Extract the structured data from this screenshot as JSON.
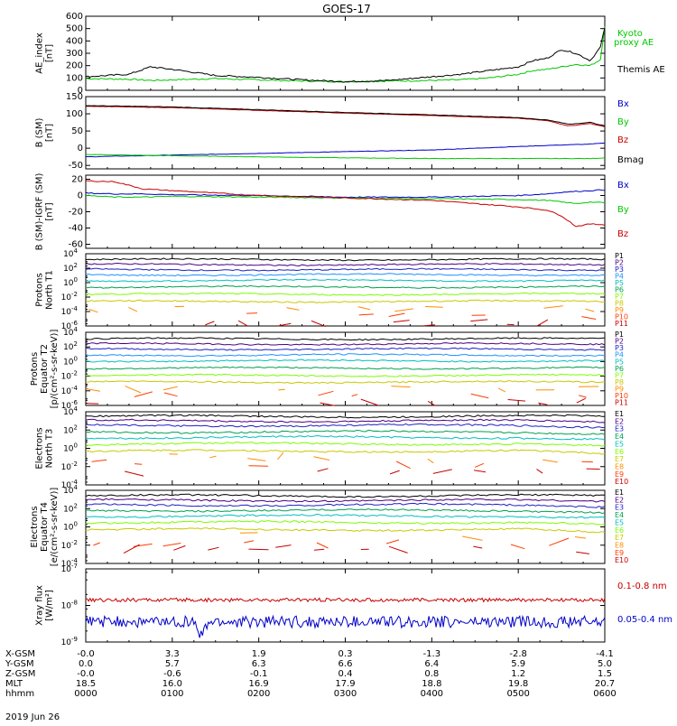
{
  "title": "GOES-17",
  "date_label": "2019 Jun 26",
  "colors": {
    "black": "#000000",
    "green": "#00c800",
    "blue": "#0000c8",
    "red": "#c80000",
    "proton_levels": [
      "#000000",
      "#4b0082",
      "#2020c8",
      "#1e90ff",
      "#00bfbf",
      "#00a050",
      "#7cfc00",
      "#c8c800",
      "#ff8c00",
      "#ff3c00",
      "#c80000"
    ],
    "electron_levels": [
      "#000000",
      "#4b0082",
      "#2020c8",
      "#00a050",
      "#00bfbf",
      "#7cfc00",
      "#c8c800",
      "#ff8c00",
      "#ff3c00",
      "#c80000"
    ]
  },
  "ephemeris": {
    "rows": [
      {
        "label": "X-GSM",
        "values": [
          "-0.0",
          "3.3",
          "1.9",
          "0.3",
          "-1.3",
          "-2.8",
          "-4.1"
        ]
      },
      {
        "label": "Y-GSM",
        "values": [
          "0.0",
          "5.7",
          "6.3",
          "6.6",
          "6.4",
          "5.9",
          "5.0"
        ]
      },
      {
        "label": "Z-GSM",
        "values": [
          "-0.0",
          "-0.6",
          "-0.1",
          "0.4",
          "0.8",
          "1.2",
          "1.5"
        ]
      },
      {
        "label": "MLT",
        "values": [
          "18.5",
          "16.0",
          "16.9",
          "17.9",
          "18.8",
          "19.8",
          "20.7"
        ]
      },
      {
        "label": "hhmm",
        "values": [
          "0000",
          "0100",
          "0200",
          "0300",
          "0400",
          "0500",
          "0600"
        ]
      }
    ]
  },
  "chart_data": [
    {
      "type": "line",
      "id": "ae",
      "ylabel": [
        "AE_index",
        "[nT]"
      ],
      "ylim": [
        0,
        600
      ],
      "yticks": [
        0,
        100,
        200,
        300,
        400,
        500,
        600
      ],
      "x": [
        "00:00",
        "00:30",
        "00:45",
        "01:00",
        "01:30",
        "02:00",
        "02:30",
        "03:00",
        "03:30",
        "04:00",
        "04:20",
        "04:40",
        "05:00",
        "05:10",
        "05:20",
        "05:30",
        "05:40",
        "05:50",
        "05:57",
        "06:00"
      ],
      "series": [
        {
          "name": "Kyoto proxy AE",
          "color_key": "green",
          "values": [
            95,
            90,
            80,
            85,
            95,
            85,
            75,
            70,
            75,
            80,
            85,
            100,
            130,
            160,
            170,
            190,
            210,
            200,
            250,
            520
          ]
        },
        {
          "name": "Themis AE",
          "color_key": "black",
          "values": [
            110,
            130,
            190,
            170,
            120,
            105,
            85,
            70,
            80,
            110,
            130,
            160,
            190,
            240,
            260,
            330,
            300,
            240,
            350,
            510
          ]
        }
      ],
      "legend": [
        "Kyoto",
        "proxy AE",
        "Themis AE"
      ]
    },
    {
      "type": "line",
      "id": "bsm",
      "ylabel": [
        "B (SM)",
        "[nT]"
      ],
      "ylim": [
        -60,
        150
      ],
      "yticks": [
        -50,
        0,
        50,
        100,
        150
      ],
      "x": [
        "00:00",
        "01:00",
        "02:00",
        "03:00",
        "04:00",
        "05:00",
        "05:20",
        "05:35",
        "05:50",
        "06:00"
      ],
      "series": [
        {
          "name": "Bx",
          "color_key": "blue",
          "values": [
            -25,
            -20,
            -15,
            -10,
            -5,
            5,
            8,
            10,
            12,
            15
          ]
        },
        {
          "name": "By",
          "color_key": "green",
          "values": [
            -18,
            -22,
            -25,
            -28,
            -30,
            -30,
            -30,
            -30,
            -30,
            -28
          ]
        },
        {
          "name": "Bz",
          "color_key": "red",
          "values": [
            122,
            118,
            110,
            102,
            95,
            87,
            80,
            65,
            72,
            62
          ]
        },
        {
          "name": "Bmag",
          "color_key": "black",
          "values": [
            124,
            120,
            112,
            104,
            97,
            89,
            82,
            70,
            75,
            65
          ]
        }
      ],
      "legend": [
        "Bx",
        "By",
        "Bz",
        "Bmag"
      ]
    },
    {
      "type": "line",
      "id": "igrf",
      "ylabel": [
        "B (SM)-IGRF (SM)",
        "[nT]"
      ],
      "ylim": [
        -65,
        25
      ],
      "yticks": [
        -60,
        -40,
        -20,
        0,
        20
      ],
      "x": [
        "00:00",
        "00:20",
        "00:40",
        "01:00",
        "02:00",
        "03:00",
        "04:00",
        "05:00",
        "05:20",
        "05:30",
        "05:40",
        "05:50",
        "06:00"
      ],
      "series": [
        {
          "name": "Bx",
          "color_key": "blue",
          "values": [
            3,
            2,
            2,
            1,
            0,
            -2,
            -2,
            0,
            2,
            4,
            5,
            6,
            7
          ]
        },
        {
          "name": "By",
          "color_key": "green",
          "values": [
            0,
            -2,
            -2,
            -1,
            -2,
            -3,
            -4,
            -5,
            -6,
            -8,
            -10,
            -8,
            -9
          ]
        },
        {
          "name": "Bz",
          "color_key": "red",
          "values": [
            18,
            17,
            8,
            6,
            0,
            -3,
            -6,
            -14,
            -18,
            -25,
            -38,
            -35,
            -36
          ]
        }
      ],
      "legend": [
        "Bx",
        "By",
        "Bz"
      ]
    },
    {
      "type": "line",
      "id": "p1",
      "ylabel": [
        "Protons",
        "North T1"
      ],
      "yscale": "log",
      "ylim_exp": [
        -6,
        4
      ],
      "yticks_exp": [
        -6,
        -4,
        -2,
        0,
        2,
        4
      ],
      "level_exp": [
        3.2,
        2.5,
        1.8,
        1.1,
        0.3,
        -0.6,
        -1.6,
        -2.6,
        -3.6,
        -4.6,
        -5.6
      ],
      "legend": [
        "P1",
        "P2",
        "P3",
        "P4",
        "P5",
        "P6",
        "P7",
        "P8",
        "P9",
        "P10",
        "P11"
      ]
    },
    {
      "type": "line",
      "id": "p2",
      "ylabel": [
        "Protons",
        "Equator T2",
        "[p/(cm²-s-sr-keV)]"
      ],
      "yscale": "log",
      "ylim_exp": [
        -6,
        4
      ],
      "yticks_exp": [
        -6,
        -4,
        -2,
        0,
        2,
        4
      ],
      "level_exp": [
        3.1,
        2.4,
        1.7,
        0.9,
        0.1,
        -0.9,
        -1.9,
        -2.8,
        -3.7,
        -4.6,
        -5.5
      ],
      "legend": [
        "P1",
        "P2",
        "P3",
        "P4",
        "P5",
        "P6",
        "P7",
        "P8",
        "P9",
        "P10",
        "P11"
      ]
    },
    {
      "type": "line",
      "id": "e1",
      "ylabel": [
        "Electrons",
        "North T3"
      ],
      "yscale": "log",
      "ylim_exp": [
        -4,
        4
      ],
      "yticks_exp": [
        -4,
        -2,
        0,
        2,
        4
      ],
      "level_exp": [
        3.5,
        3.0,
        2.5,
        1.8,
        1.2,
        0.5,
        -0.3,
        -1.0,
        -1.8,
        -2.5
      ],
      "legend": [
        "E1",
        "E2",
        "E3",
        "E4",
        "E5",
        "E6",
        "E7",
        "E8",
        "E9",
        "E10"
      ]
    },
    {
      "type": "line",
      "id": "e2",
      "ylabel": [
        "Electrons",
        "Equator T4",
        "[e/(cm²-s-sr-keV)]"
      ],
      "yscale": "log",
      "ylim_exp": [
        -4,
        4
      ],
      "yticks_exp": [
        -4,
        -2,
        0,
        2,
        4
      ],
      "level_exp": [
        3.4,
        2.9,
        2.4,
        1.8,
        1.2,
        0.5,
        -0.3,
        -1.0,
        -1.8,
        -2.5
      ],
      "legend": [
        "E1",
        "E2",
        "E3",
        "E4",
        "E5",
        "E6",
        "E7",
        "E8",
        "E9",
        "E10"
      ]
    },
    {
      "type": "line",
      "id": "xray",
      "ylabel": [
        "Xray flux",
        "[W/m²]"
      ],
      "yscale": "log",
      "ylim_exp": [
        -9,
        -7
      ],
      "yticks_exp": [
        -9,
        -8,
        -7
      ],
      "series": [
        {
          "name": "0.1-0.8 nm",
          "color_key": "red",
          "level_exp": -7.85
        },
        {
          "name": "0.05-0.4 nm",
          "color_key": "blue",
          "level_exp": -8.45
        }
      ],
      "legend": [
        "0.1-0.8 nm",
        "0.05-0.4 nm"
      ]
    }
  ]
}
